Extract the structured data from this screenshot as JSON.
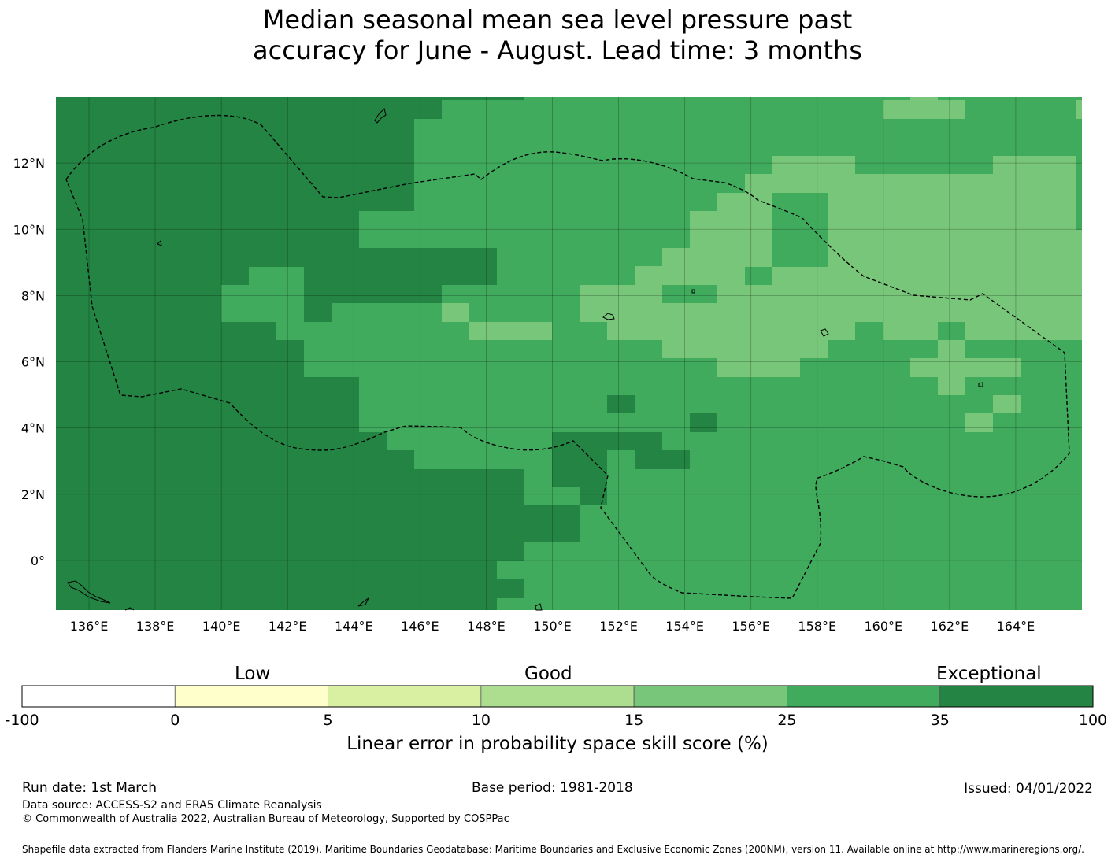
{
  "title": {
    "line1": "Median seasonal mean sea level pressure past",
    "line2": "accuracy for June - August. Lead time: 3 months"
  },
  "map": {
    "lon_range_deg_e": [
      135.0,
      166.0
    ],
    "lat_range_deg": [
      -1.5,
      14.0
    ],
    "grid_step_deg": 2,
    "x_tick_labels": [
      "136°E",
      "138°E",
      "140°E",
      "142°E",
      "144°E",
      "146°E",
      "148°E",
      "150°E",
      "152°E",
      "154°E",
      "156°E",
      "158°E",
      "160°E",
      "162°E",
      "164°E"
    ],
    "y_tick_labels": [
      "0°",
      "2°N",
      "4°N",
      "6°N",
      "8°N",
      "10°N",
      "12°N"
    ],
    "eez_boundary": "dashed",
    "coastlines": "solid black"
  },
  "colorbar": {
    "categories": [
      {
        "label": "Low"
      },
      {
        "label": "Good"
      },
      {
        "label": "Exceptional"
      }
    ],
    "ticks": [
      "-100",
      "0",
      "5",
      "10",
      "15",
      "25",
      "35",
      "100"
    ],
    "colors": [
      "#ffffff",
      "#ffffcc",
      "#d9f0a3",
      "#addd8e",
      "#78c679",
      "#41ab5d",
      "#238443"
    ],
    "label": "Linear error in probability space skill score (%)"
  },
  "footer": {
    "run_date": "Run date: 1st March",
    "base_period": "Base period: 1981-2018",
    "issued": "Issued: 04/01/2022",
    "data_source": "Data source: ACCESS-S2 and ERA5 Climate Reanalysis",
    "copyright": "© Commonwealth of Australia 2022, Australian Bureau of Meteorology, Supported by COSPPac",
    "shapefile": "Shapefile data extracted from Flanders Marine Institute (2019), Maritime Boundaries Geodatabase: Maritime Boundaries and Exclusive Economic Zones (200NM), version 11. Available online at http://www.marineregions.org/."
  }
}
